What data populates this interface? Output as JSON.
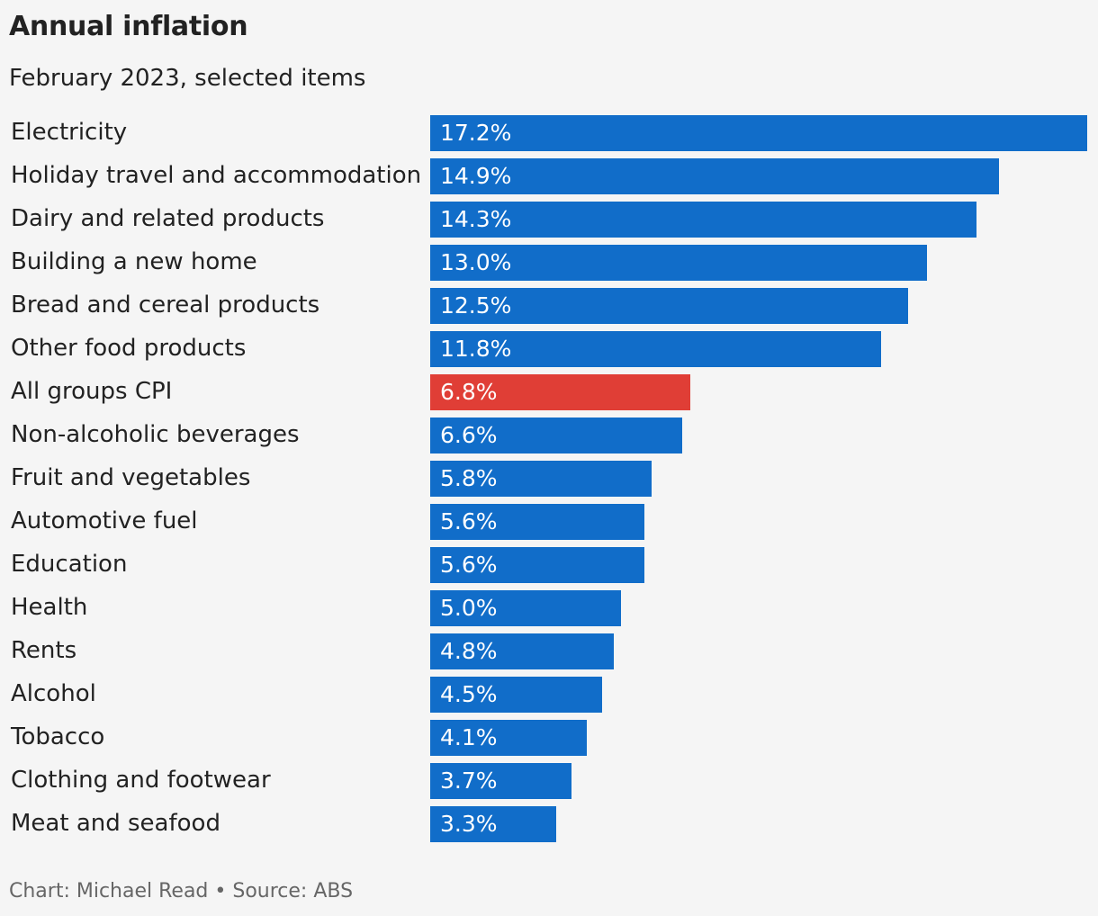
{
  "title": "Annual inflation",
  "subtitle": "February 2023, selected items",
  "footer": "Chart: Michael Read • Source: ABS",
  "colors": {
    "bar_default": "#116dc9",
    "bar_highlight": "#e03e36",
    "background": "#f5f5f5"
  },
  "chart_data": {
    "type": "bar",
    "orientation": "horizontal",
    "title": "Annual inflation",
    "subtitle": "February 2023, selected items",
    "xlabel": "",
    "ylabel": "",
    "xlim": [
      0,
      17.2
    ],
    "grid": false,
    "unit": "%",
    "highlight": "All groups CPI",
    "categories": [
      "Electricity",
      "Holiday travel and accommodation",
      "Dairy and related products",
      "Building a new home",
      "Bread and cereal products",
      "Other food products",
      "All groups CPI",
      "Non-alcoholic beverages",
      "Fruit and vegetables",
      "Automotive fuel",
      "Education",
      "Health",
      "Rents",
      "Alcohol",
      "Tobacco",
      "Clothing and footwear",
      "Meat and seafood"
    ],
    "values": [
      17.2,
      14.9,
      14.3,
      13.0,
      12.5,
      11.8,
      6.8,
      6.6,
      5.8,
      5.6,
      5.6,
      5.0,
      4.8,
      4.5,
      4.1,
      3.7,
      3.3
    ],
    "value_labels": [
      "17.2%",
      "14.9%",
      "14.3%",
      "13.0%",
      "12.5%",
      "11.8%",
      "6.8%",
      "6.6%",
      "5.8%",
      "5.6%",
      "5.6%",
      "5.0%",
      "4.8%",
      "4.5%",
      "4.1%",
      "3.7%",
      "3.3%"
    ]
  }
}
